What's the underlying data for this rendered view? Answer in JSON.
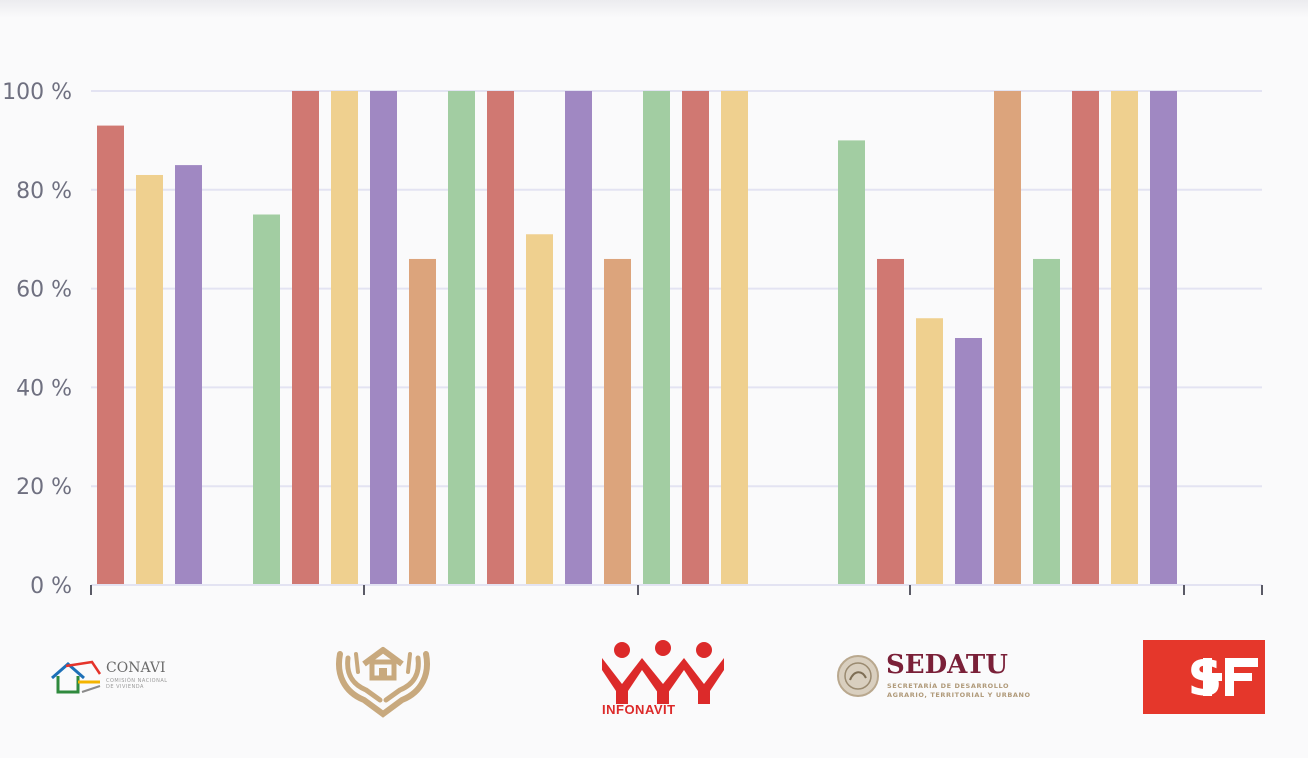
{
  "chart_data": {
    "type": "bar",
    "y_ticks": [
      "0 %",
      "20 %",
      "40 %",
      "60 %",
      "80 %",
      "100 %"
    ],
    "ylim": [
      0,
      100
    ],
    "grid": true,
    "legend": "none",
    "colors": {
      "red": "#d07872",
      "yellow": "#efd08f",
      "purple": "#a088c2",
      "green": "#a2cda2",
      "orange": "#dca47c"
    },
    "groups": [
      {
        "bars": [
          {
            "color": "red",
            "value": 93
          },
          {
            "color": "yellow",
            "value": 83
          },
          {
            "color": "purple",
            "value": 85
          }
        ]
      },
      {
        "bars": [
          {
            "color": "green",
            "value": 75
          },
          {
            "color": "red",
            "value": 100
          },
          {
            "color": "yellow",
            "value": 100
          },
          {
            "color": "purple",
            "value": 100
          },
          {
            "color": "orange",
            "value": 66
          },
          {
            "color": "green",
            "value": 100
          },
          {
            "color": "red",
            "value": 100
          },
          {
            "color": "yellow",
            "value": 71
          },
          {
            "color": "purple",
            "value": 100
          },
          {
            "color": "orange",
            "value": 66
          },
          {
            "color": "green",
            "value": 100
          },
          {
            "color": "red",
            "value": 100
          },
          {
            "color": "yellow",
            "value": 100
          }
        ]
      },
      {
        "bars": [
          {
            "color": "green",
            "value": 90
          },
          {
            "color": "red",
            "value": 66
          },
          {
            "color": "yellow",
            "value": 54
          },
          {
            "color": "purple",
            "value": 50
          },
          {
            "color": "orange",
            "value": 100
          },
          {
            "color": "green",
            "value": 66
          },
          {
            "color": "red",
            "value": 100
          },
          {
            "color": "yellow",
            "value": 100
          },
          {
            "color": "purple",
            "value": 100
          }
        ]
      }
    ]
  },
  "logos": {
    "conavi": {
      "name": "CONAVI",
      "subtitle_line1": "COMISIÓN NACIONAL",
      "subtitle_line2": "DE VIVIENDA",
      "colors": [
        "#2f8a3e",
        "#1d70b8",
        "#e5332a",
        "#f4b400",
        "#8a8a8a"
      ]
    },
    "hands": {
      "icon": "hands-house-icon",
      "color": "#c8a97e"
    },
    "infonavit": {
      "name": "INFONAVIT",
      "color": "#dc2a2a"
    },
    "sedatu": {
      "name": "SEDATU",
      "subtitle_line1": "SECRETARÍA DE DESARROLLO",
      "subtitle_line2": "AGRARIO, TERRITORIAL Y URBANO",
      "color": "#7a2038"
    },
    "shf": {
      "name": "SHF",
      "color": "#e5372b"
    }
  }
}
